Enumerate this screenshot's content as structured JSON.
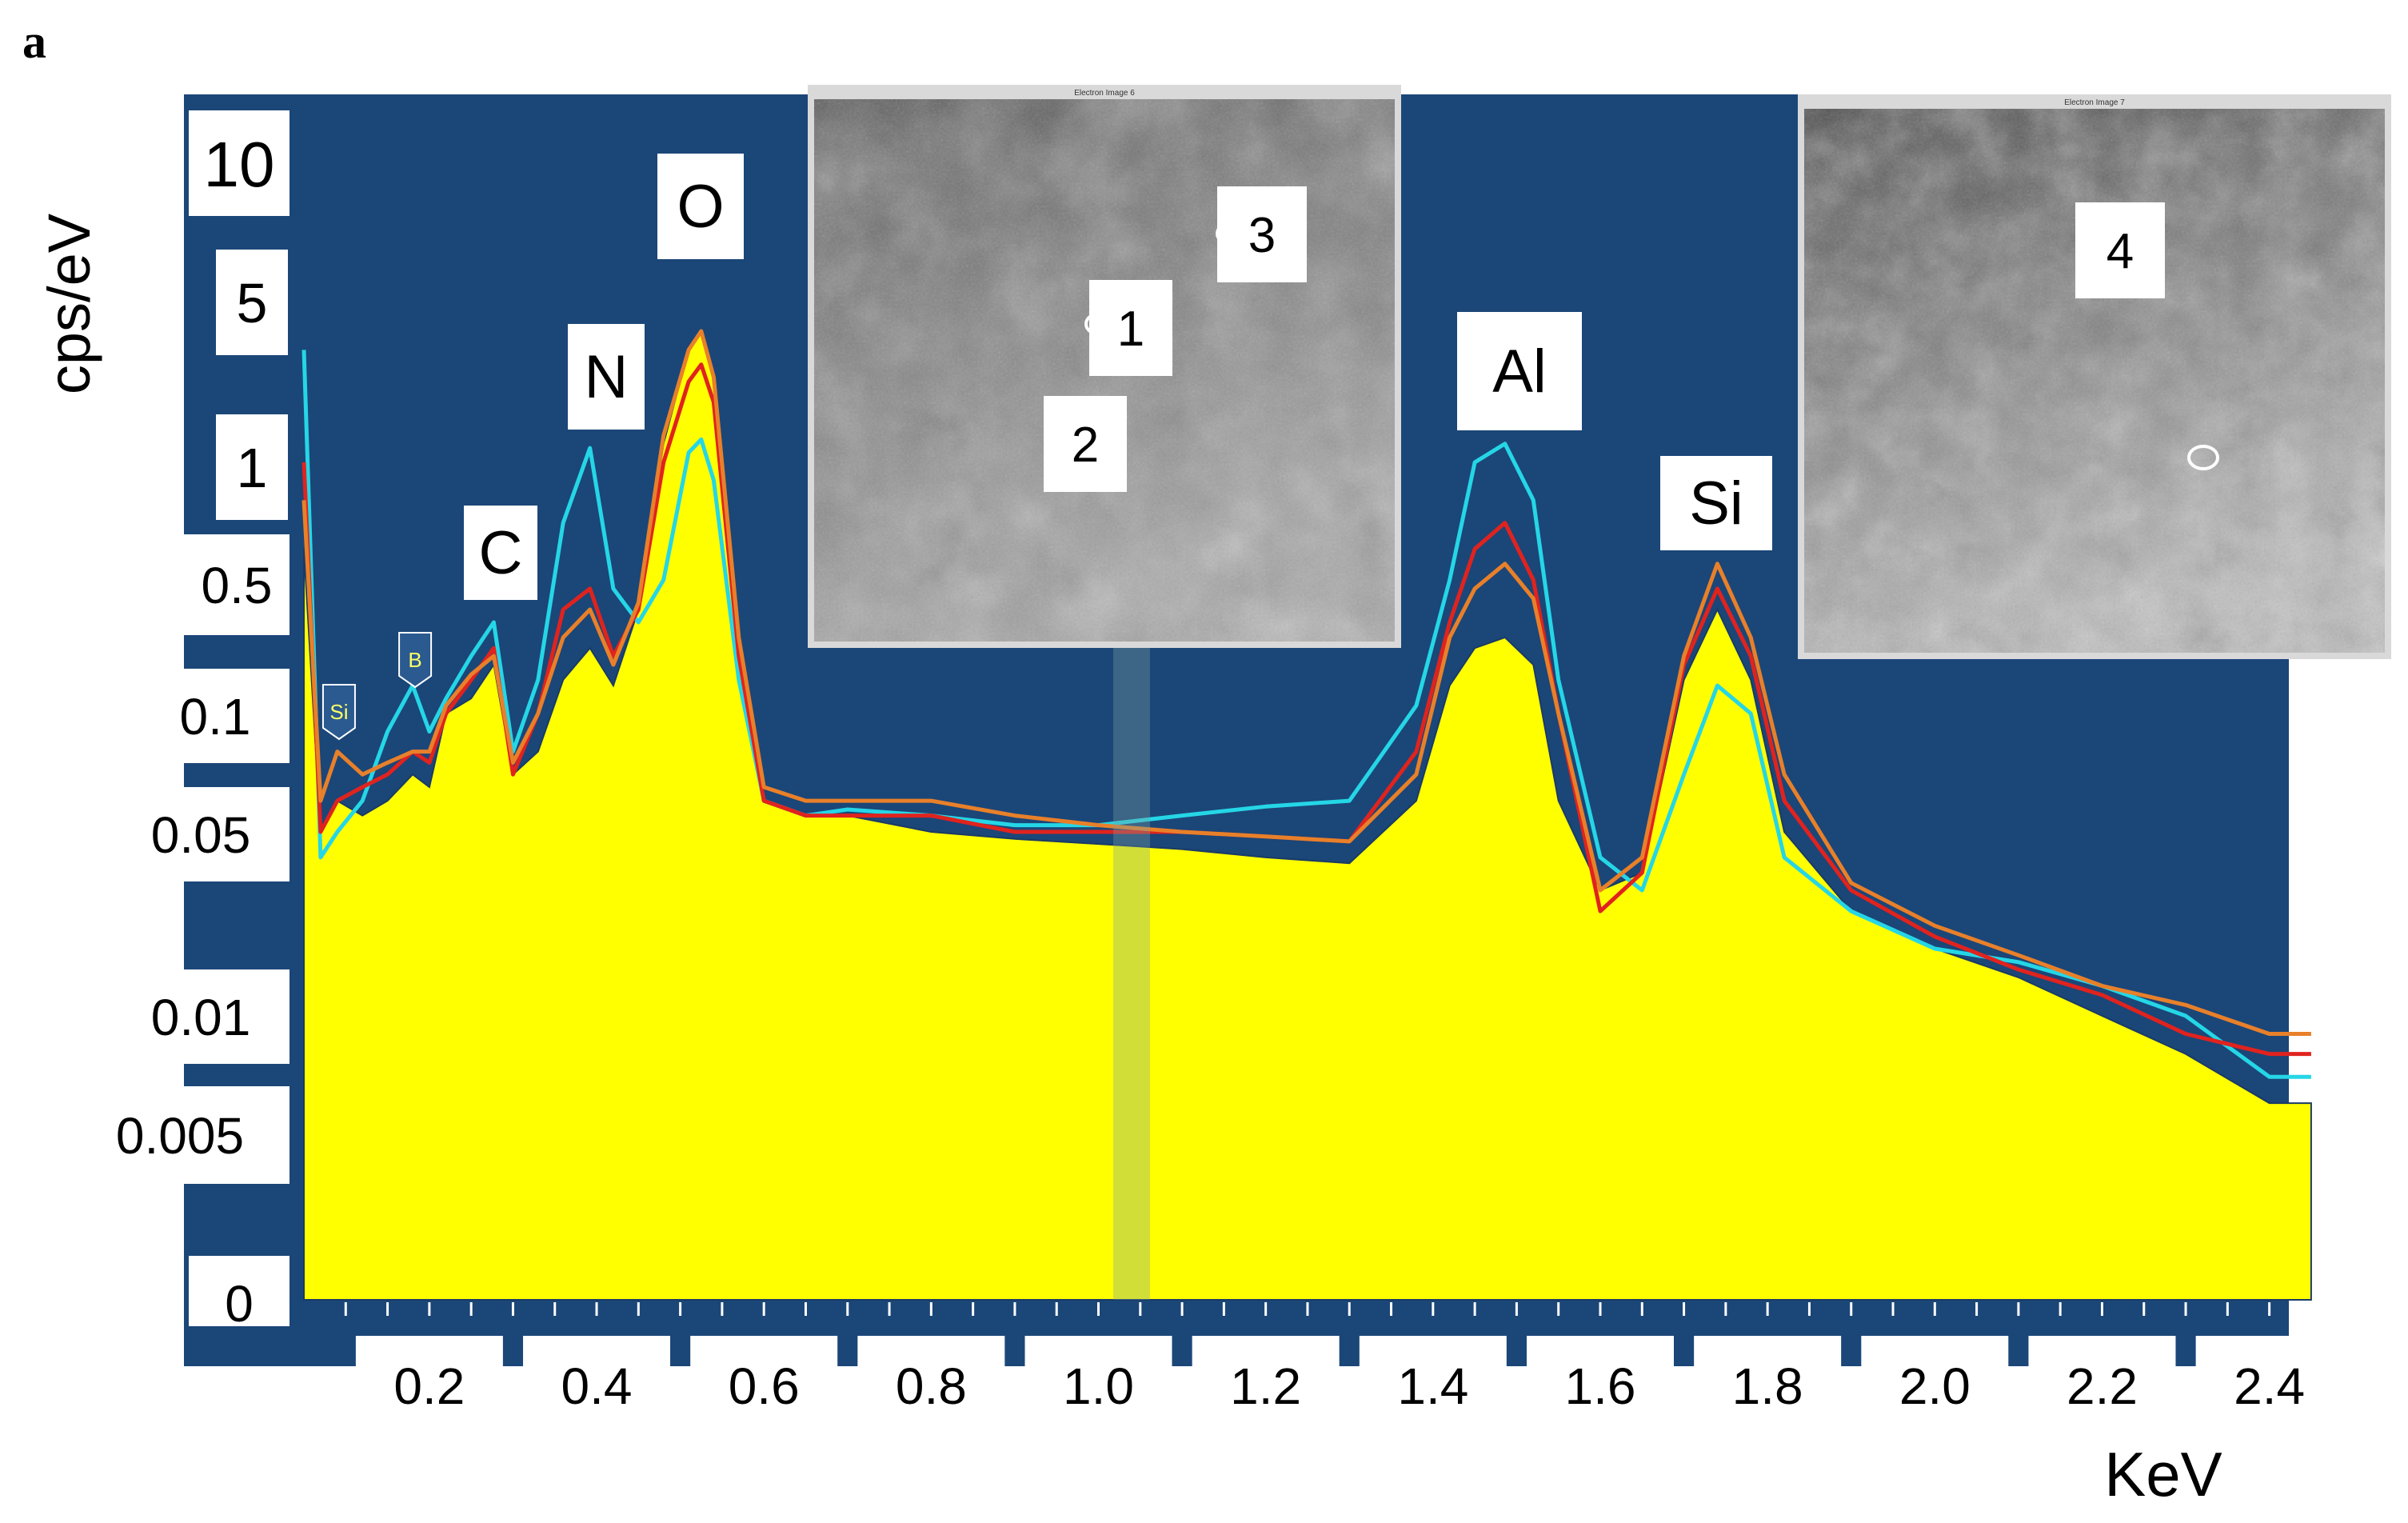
{
  "panel_label": "a",
  "colors": {
    "background": "#1b4678",
    "fill": "#ffff00",
    "label_box": "#ffffff",
    "cyan": "#25d6e6",
    "red": "#e0231e",
    "orange": "#e8802a",
    "dark": "#1a3a66"
  },
  "insets": [
    {
      "title": "Electron Image 6",
      "labels": [
        "1",
        "2",
        "3"
      ]
    },
    {
      "title": "Electron Image 7",
      "labels": [
        "4"
      ]
    }
  ],
  "chart_data": {
    "type": "line",
    "title": "",
    "xlabel": "KeV",
    "ylabel": "cps/eV",
    "xlim": [
      0.05,
      2.45
    ],
    "y_scale": "log",
    "y_ticks": [
      "10",
      "5",
      "1",
      "0.5",
      "0.1",
      "0.05",
      "0.01",
      "0.005",
      "0"
    ],
    "x_ticks": [
      "0.2",
      "0.4",
      "0.6",
      "0.8",
      "1.0",
      "1.2",
      "1.4",
      "1.6",
      "1.8",
      "2.0",
      "2.2",
      "2.4"
    ],
    "grid": false,
    "peak_labels": [
      {
        "text": "C",
        "x": 0.277
      },
      {
        "text": "N",
        "x": 0.392
      },
      {
        "text": "O",
        "x": 0.525
      },
      {
        "text": "Al",
        "x": 1.486
      },
      {
        "text": "Si",
        "x": 1.74
      }
    ],
    "small_markers": [
      {
        "text": "Si",
        "x": 0.092
      },
      {
        "text": "B",
        "x": 0.183
      }
    ],
    "series": [
      {
        "style": "filled",
        "color": "#ffff00",
        "x": [
          0.05,
          0.07,
          0.09,
          0.12,
          0.15,
          0.18,
          0.2,
          0.22,
          0.25,
          0.277,
          0.3,
          0.33,
          0.36,
          0.392,
          0.42,
          0.45,
          0.48,
          0.51,
          0.525,
          0.54,
          0.57,
          0.6,
          0.65,
          0.7,
          0.8,
          0.9,
          1.0,
          1.1,
          1.2,
          1.3,
          1.38,
          1.42,
          1.45,
          1.486,
          1.52,
          1.55,
          1.6,
          1.65,
          1.7,
          1.74,
          1.78,
          1.82,
          1.9,
          2.0,
          2.1,
          2.2,
          2.3,
          2.4,
          2.45
        ],
        "y": [
          0.6,
          0.05,
          0.06,
          0.055,
          0.06,
          0.07,
          0.065,
          0.1,
          0.12,
          0.18,
          0.07,
          0.08,
          0.15,
          0.22,
          0.14,
          0.35,
          1.2,
          3.0,
          3.6,
          2.2,
          0.25,
          0.06,
          0.055,
          0.055,
          0.05,
          0.047,
          0.045,
          0.043,
          0.04,
          0.038,
          0.06,
          0.14,
          0.22,
          0.25,
          0.18,
          0.06,
          0.03,
          0.035,
          0.15,
          0.35,
          0.15,
          0.05,
          0.025,
          0.018,
          0.014,
          0.01,
          0.008,
          0.006,
          0.006
        ]
      },
      {
        "name": "",
        "color": "#25d6e6",
        "x": [
          0.05,
          0.07,
          0.09,
          0.12,
          0.15,
          0.18,
          0.2,
          0.22,
          0.25,
          0.277,
          0.3,
          0.33,
          0.36,
          0.392,
          0.42,
          0.45,
          0.48,
          0.51,
          0.525,
          0.54,
          0.57,
          0.6,
          0.65,
          0.7,
          0.8,
          0.9,
          1.0,
          1.1,
          1.2,
          1.3,
          1.38,
          1.42,
          1.45,
          1.486,
          1.52,
          1.55,
          1.6,
          1.65,
          1.7,
          1.74,
          1.78,
          1.82,
          1.9,
          2.0,
          2.1,
          2.2,
          2.3,
          2.4,
          2.45
        ],
        "y": [
          3.0,
          0.04,
          0.05,
          0.06,
          0.09,
          0.14,
          0.09,
          0.12,
          0.2,
          0.3,
          0.08,
          0.15,
          0.7,
          1.15,
          0.45,
          0.3,
          0.5,
          1.1,
          1.25,
          0.9,
          0.15,
          0.06,
          0.055,
          0.057,
          0.055,
          0.052,
          0.052,
          0.055,
          0.058,
          0.06,
          0.11,
          0.5,
          1.0,
          1.2,
          0.8,
          0.15,
          0.04,
          0.03,
          0.07,
          0.14,
          0.1,
          0.04,
          0.025,
          0.018,
          0.016,
          0.013,
          0.01,
          0.007,
          0.007
        ]
      },
      {
        "name": "",
        "color": "#e0231e",
        "x": [
          0.05,
          0.07,
          0.09,
          0.12,
          0.15,
          0.18,
          0.2,
          0.22,
          0.25,
          0.277,
          0.3,
          0.33,
          0.36,
          0.392,
          0.42,
          0.45,
          0.48,
          0.51,
          0.525,
          0.54,
          0.57,
          0.6,
          0.65,
          0.7,
          0.8,
          0.9,
          1.0,
          1.1,
          1.2,
          1.3,
          1.38,
          1.42,
          1.45,
          1.486,
          1.52,
          1.55,
          1.6,
          1.65,
          1.7,
          1.74,
          1.78,
          1.82,
          1.9,
          2.0,
          2.1,
          2.2,
          2.3,
          2.4,
          2.45
        ],
        "y": [
          1.0,
          0.05,
          0.06,
          0.065,
          0.07,
          0.08,
          0.075,
          0.1,
          0.15,
          0.22,
          0.07,
          0.1,
          0.35,
          0.45,
          0.2,
          0.35,
          1.0,
          2.2,
          2.6,
          1.8,
          0.2,
          0.06,
          0.055,
          0.055,
          0.055,
          0.05,
          0.05,
          0.05,
          0.048,
          0.046,
          0.08,
          0.3,
          0.6,
          0.7,
          0.5,
          0.1,
          0.025,
          0.035,
          0.18,
          0.45,
          0.2,
          0.06,
          0.03,
          0.02,
          0.015,
          0.012,
          0.009,
          0.008,
          0.008
        ]
      },
      {
        "name": "",
        "color": "#e8802a",
        "x": [
          0.05,
          0.07,
          0.09,
          0.12,
          0.15,
          0.18,
          0.2,
          0.22,
          0.25,
          0.277,
          0.3,
          0.33,
          0.36,
          0.392,
          0.42,
          0.45,
          0.48,
          0.51,
          0.525,
          0.54,
          0.57,
          0.6,
          0.65,
          0.7,
          0.8,
          0.9,
          1.0,
          1.1,
          1.2,
          1.3,
          1.38,
          1.42,
          1.45,
          1.486,
          1.52,
          1.55,
          1.6,
          1.65,
          1.7,
          1.74,
          1.78,
          1.82,
          1.9,
          2.0,
          2.1,
          2.2,
          2.3,
          2.4,
          2.45
        ],
        "y": [
          0.8,
          0.06,
          0.08,
          0.07,
          0.075,
          0.08,
          0.08,
          0.11,
          0.16,
          0.2,
          0.075,
          0.1,
          0.25,
          0.35,
          0.18,
          0.38,
          1.3,
          3.0,
          3.6,
          2.3,
          0.25,
          0.065,
          0.06,
          0.06,
          0.06,
          0.055,
          0.052,
          0.05,
          0.048,
          0.046,
          0.07,
          0.25,
          0.45,
          0.55,
          0.4,
          0.1,
          0.03,
          0.04,
          0.2,
          0.55,
          0.25,
          0.07,
          0.032,
          0.022,
          0.017,
          0.013,
          0.011,
          0.009,
          0.009
        ]
      }
    ]
  }
}
